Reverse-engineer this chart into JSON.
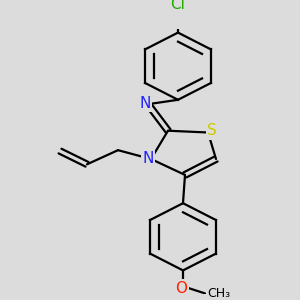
{
  "bg_color": "#dcdcdc",
  "bond_color": "#000000",
  "N_color": "#2222ff",
  "S_color": "#cccc00",
  "O_color": "#ff2200",
  "Cl_color": "#22aa00",
  "bond_width": 1.6,
  "figsize": [
    3.0,
    3.0
  ],
  "dpi": 100,
  "xlim": [
    0,
    300
  ],
  "ylim": [
    0,
    300
  ]
}
